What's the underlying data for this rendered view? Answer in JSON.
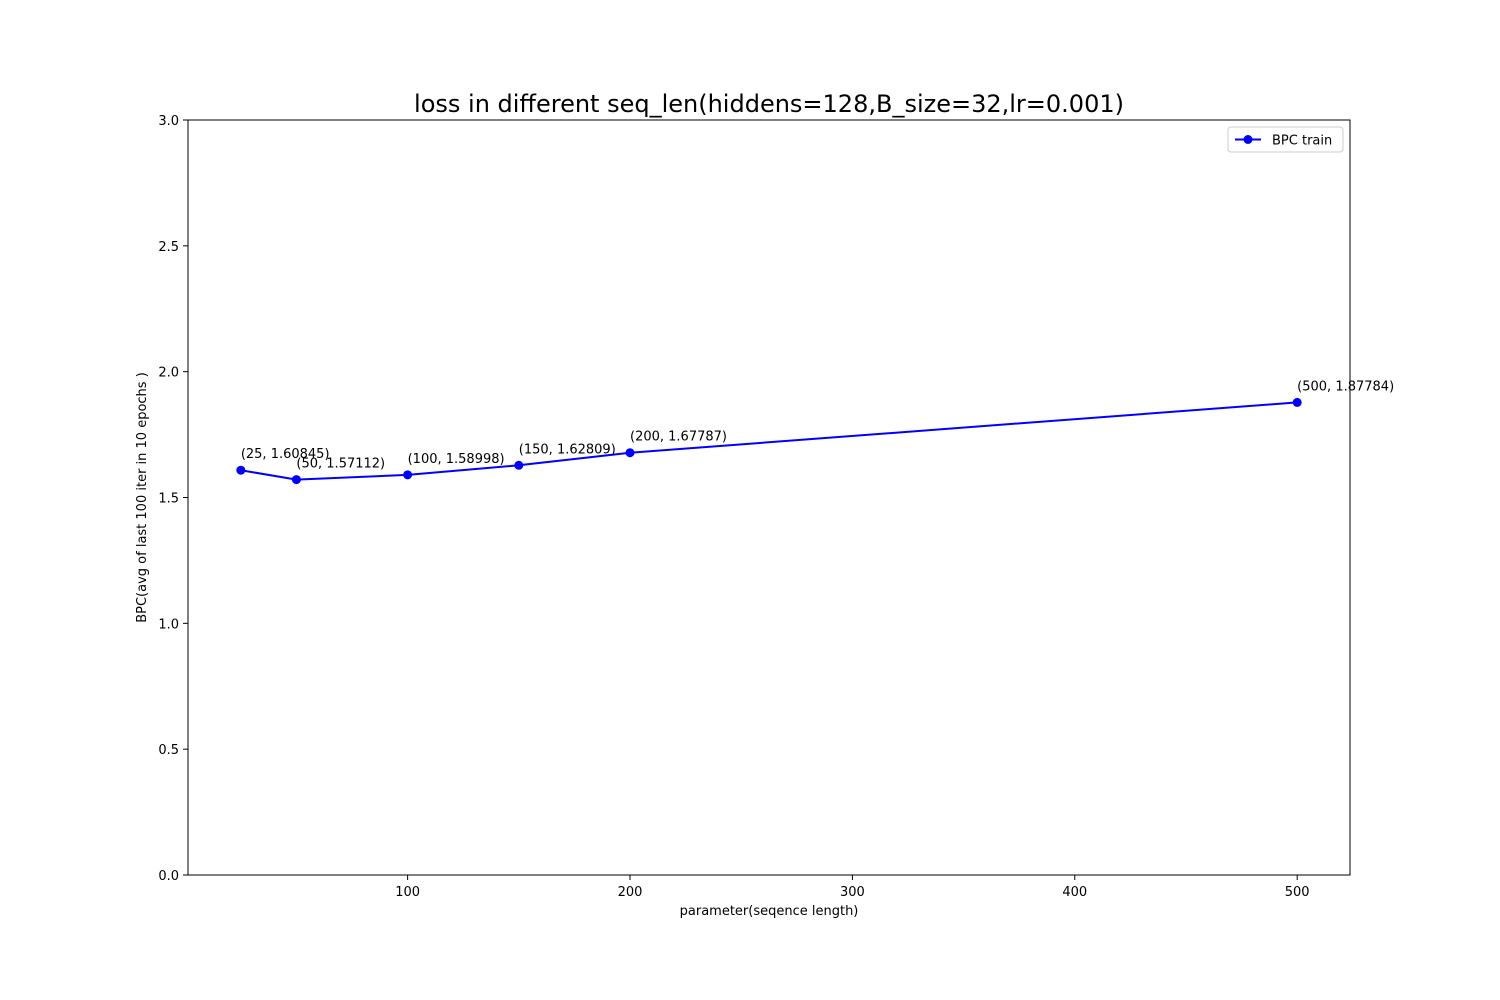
{
  "chart_data": {
    "type": "line",
    "title": "loss in different seq_len(hiddens=128,B_size=32,lr=0.001)",
    "xlabel": "parameter(seqence length)",
    "ylabel": "BPC(avg of last 100 iter in 10 epochs )",
    "xlim": [
      1.25,
      523.75
    ],
    "ylim": [
      0,
      3
    ],
    "xticks": [
      100,
      200,
      300,
      400,
      500
    ],
    "xtick_labels": [
      "100",
      "200",
      "300",
      "400",
      "500"
    ],
    "yticks": [
      0,
      0.5,
      1,
      1.5,
      2,
      2.5,
      3
    ],
    "ytick_labels": [
      "0.0",
      "0.5",
      "1.0",
      "1.5",
      "2.0",
      "2.5",
      "3.0"
    ],
    "grid": false,
    "legend_position": "top-right",
    "series": [
      {
        "name": "BPC train",
        "color": "#0000ff",
        "marker": "circle",
        "x": [
          25,
          50,
          100,
          150,
          200,
          500
        ],
        "y": [
          1.60845,
          1.57112,
          1.58998,
          1.62809,
          1.67787,
          1.87784
        ],
        "point_labels": [
          "(25, 1.60845)",
          "(50, 1.57112)",
          "(100, 1.58998)",
          "(150, 1.62809)",
          "(200, 1.67787)",
          "(500, 1.87784)"
        ]
      }
    ]
  }
}
